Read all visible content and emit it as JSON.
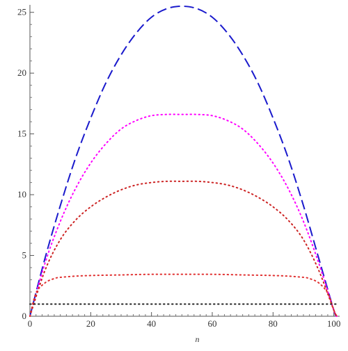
{
  "chart_data": {
    "type": "line",
    "title": "",
    "xlabel": "n",
    "ylabel": "",
    "xlim": [
      0,
      101
    ],
    "ylim": [
      0,
      25.5
    ],
    "grid": false,
    "legend": "none",
    "x_ticks": [
      0,
      20,
      40,
      60,
      80,
      100
    ],
    "y_ticks": [
      0,
      5,
      10,
      15,
      20,
      25
    ],
    "x_tick_labels": [
      "0",
      "20",
      "40",
      "60",
      "80",
      "100"
    ],
    "y_tick_labels": [
      "0",
      "5",
      "10",
      "15",
      "20",
      "25"
    ],
    "series": [
      {
        "color": "#1a1acc",
        "dash": "dashed",
        "x": [
          0,
          5,
          10,
          15,
          20,
          25,
          30,
          35,
          40,
          45,
          50,
          55,
          60,
          65,
          70,
          75,
          80,
          85,
          90,
          95,
          100,
          101
        ],
        "y": [
          0,
          4.8,
          9.1,
          13.0,
          16.3,
          19.2,
          21.5,
          23.3,
          24.6,
          25.3,
          25.5,
          25.3,
          24.6,
          23.3,
          21.5,
          19.2,
          16.3,
          13.0,
          9.1,
          4.8,
          0.5,
          0
        ]
      },
      {
        "color": "#ff00ff",
        "dash": "dotted",
        "x": [
          0,
          5,
          10,
          15,
          20,
          25,
          30,
          35,
          40,
          45,
          50,
          55,
          60,
          65,
          70,
          75,
          80,
          85,
          90,
          95,
          100,
          101
        ],
        "y": [
          0,
          4.4,
          7.8,
          10.5,
          12.6,
          14.2,
          15.4,
          16.1,
          16.5,
          16.6,
          16.6,
          16.6,
          16.5,
          16.1,
          15.4,
          14.2,
          12.6,
          10.5,
          7.8,
          4.4,
          0.5,
          0
        ]
      },
      {
        "color": "#cc2222",
        "dash": "dotted",
        "x": [
          0,
          5,
          10,
          15,
          20,
          25,
          30,
          35,
          40,
          45,
          50,
          55,
          60,
          65,
          70,
          75,
          80,
          85,
          90,
          95,
          100,
          101
        ],
        "y": [
          0,
          3.8,
          6.3,
          7.9,
          9.0,
          9.8,
          10.4,
          10.8,
          11.0,
          11.1,
          11.1,
          11.1,
          11.0,
          10.8,
          10.4,
          9.8,
          9.0,
          7.9,
          6.3,
          3.8,
          0.5,
          0
        ]
      },
      {
        "color": "#e03030",
        "dash": "dotted",
        "x": [
          0,
          2,
          5,
          8,
          10,
          15,
          20,
          30,
          40,
          50,
          60,
          70,
          80,
          85,
          90,
          92,
          95,
          98,
          100,
          101
        ],
        "y": [
          0,
          1.9,
          2.75,
          3.1,
          3.2,
          3.3,
          3.35,
          3.4,
          3.45,
          3.45,
          3.45,
          3.4,
          3.35,
          3.3,
          3.2,
          3.1,
          2.75,
          1.9,
          0.5,
          0
        ]
      },
      {
        "color": "#222222",
        "dash": "dotted",
        "x": [
          0,
          101
        ],
        "y": [
          1,
          1
        ]
      }
    ]
  }
}
